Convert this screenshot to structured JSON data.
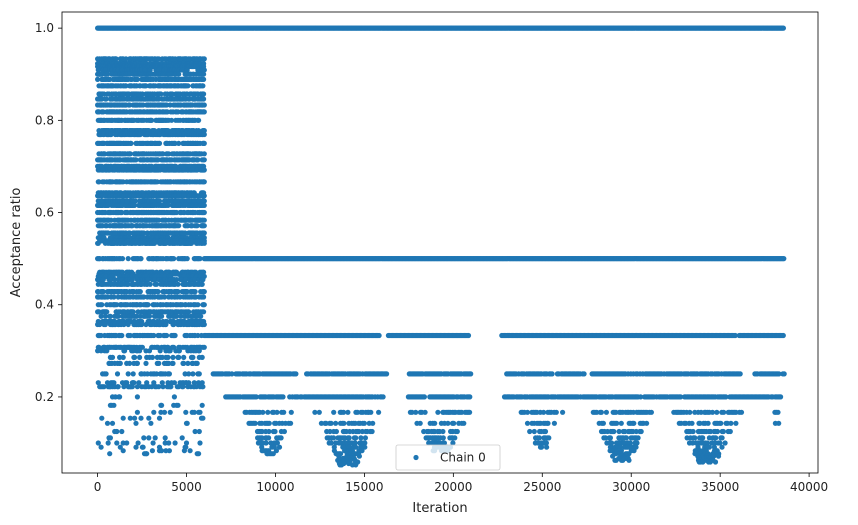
{
  "chart_data": {
    "type": "scatter",
    "title": "",
    "xlabel": "Iteration",
    "ylabel": "Acceptance ratio",
    "xlim": [
      -2000,
      40500
    ],
    "ylim": [
      0.035,
      1.035
    ],
    "xticks": [
      0,
      5000,
      10000,
      15000,
      20000,
      25000,
      30000,
      35000,
      40000
    ],
    "yticks": [
      0.2,
      0.4,
      0.6,
      0.8,
      1.0
    ],
    "ytick_labels": [
      "0.2",
      "0.4",
      "0.6",
      "0.8",
      "1.0"
    ],
    "grid": false,
    "legend": {
      "position": "bottom-center"
    },
    "series": [
      {
        "name": "Chain 0",
        "color": "#1f77b4",
        "marker": "circle",
        "n_iterations": 38600,
        "bands": [
          {
            "y": 1.0,
            "x_start": 0,
            "x_end": 38600
          },
          {
            "y": 0.5,
            "x_start": 6000,
            "x_end": 38600
          },
          {
            "y": 0.3333,
            "x_start": 6000,
            "x_end": 38600,
            "gaps": [
              [
                15900,
                16300
              ],
              [
                20900,
                22700
              ],
              [
                35900,
                36000
              ]
            ]
          },
          {
            "y": 0.25,
            "x_start": 6500,
            "x_end": 38600,
            "gaps": [
              [
                11200,
                11700
              ],
              [
                16300,
                17500
              ],
              [
                21000,
                22900
              ],
              [
                27400,
                27600
              ],
              [
                36200,
                36900
              ]
            ]
          },
          {
            "y": 0.2,
            "x_start": 7200,
            "x_end": 38600,
            "gaps": [
              [
                16100,
                17400
              ],
              [
                21000,
                22800
              ]
            ]
          }
        ],
        "early_phase": {
          "x_start": 0,
          "x_end": 6000,
          "levels": [
            0.9333,
            0.9231,
            0.9167,
            0.9091,
            0.9,
            0.8889,
            0.875,
            0.8571,
            0.8462,
            0.8333,
            0.8182,
            0.8,
            0.7778,
            0.7692,
            0.75,
            0.7273,
            0.7143,
            0.7,
            0.6923,
            0.6667,
            0.6429,
            0.6364,
            0.625,
            0.6154,
            0.6,
            0.5833,
            0.5714,
            0.5556,
            0.5455,
            0.5385,
            0.5333,
            0.5,
            0.4706,
            0.4667,
            0.4615,
            0.4545,
            0.4444,
            0.4286,
            0.4167,
            0.4,
            0.3846,
            0.375,
            0.3636,
            0.3571,
            0.3333,
            0.3077,
            0.3,
            0.2857,
            0.2727,
            0.25,
            0.2308,
            0.2222,
            0.2,
            0.1818,
            0.1667,
            0.1538,
            0.1429,
            0.125,
            0.1111,
            0.1,
            0.0909,
            0.0833,
            0.0769
          ]
        },
        "dip_clusters": [
          {
            "x_start": 8200,
            "x_end": 11200,
            "min_y": 0.0769
          },
          {
            "x_start": 12200,
            "x_end": 16000,
            "min_y": 0.0526
          },
          {
            "x_start": 17600,
            "x_end": 21000,
            "min_y": 0.0833
          },
          {
            "x_start": 23800,
            "x_end": 26200,
            "min_y": 0.0909
          },
          {
            "x_start": 27800,
            "x_end": 31200,
            "min_y": 0.0625
          },
          {
            "x_start": 32400,
            "x_end": 36200,
            "min_y": 0.0588
          },
          {
            "x_start": 37800,
            "x_end": 38600,
            "min_y": 0.1429
          }
        ]
      }
    ]
  }
}
